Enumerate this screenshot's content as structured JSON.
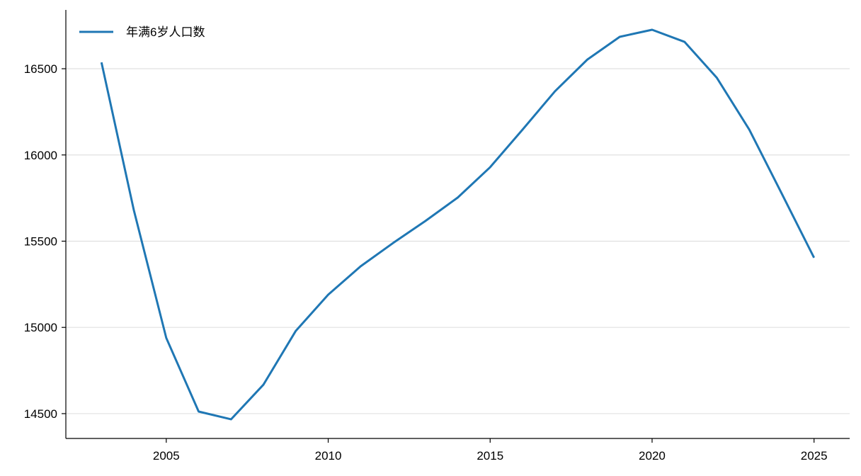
{
  "chart_data": {
    "type": "line",
    "x": [
      2003,
      2004,
      2005,
      2006,
      2007,
      2008,
      2009,
      2010,
      2011,
      2012,
      2013,
      2014,
      2015,
      2016,
      2017,
      2018,
      2019,
      2020,
      2021,
      2022,
      2023,
      2024,
      2025
    ],
    "series": [
      {
        "name": "年满6岁人口数",
        "color": "#1f77b4",
        "values": [
          16537,
          15679,
          14939,
          14512,
          14467,
          14668,
          14980,
          15190,
          15354,
          15489,
          15617,
          15753,
          15929,
          16147,
          16369,
          16553,
          16685,
          16726,
          16656,
          16447,
          16147,
          15777,
          15404
        ]
      }
    ],
    "xlim": [
      2001.9,
      2026.1
    ],
    "xticks": [
      2005,
      2010,
      2015,
      2020,
      2025
    ],
    "ylim": [
      14356,
      16841
    ],
    "yticks": [
      14500,
      15000,
      15500,
      16000,
      16500
    ],
    "grid": true,
    "legend": "upper-left"
  }
}
